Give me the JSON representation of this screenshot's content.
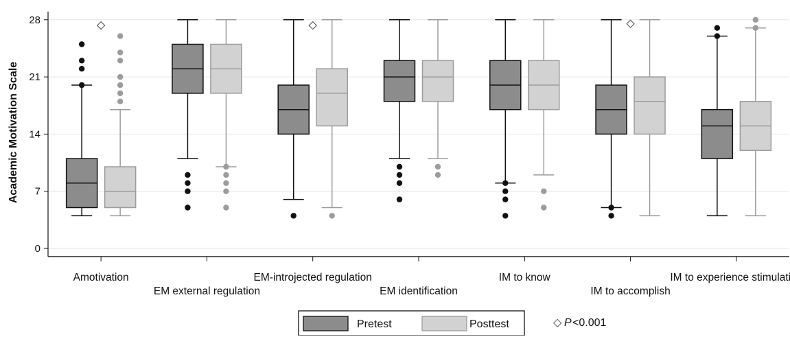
{
  "chart_data": {
    "type": "box",
    "ylabel": "Academic Motivation Scale",
    "ylim": [
      -1,
      29
    ],
    "yticks": [
      0,
      7,
      14,
      21,
      28
    ],
    "grid": true,
    "legend_position": "bottom",
    "categories": [
      "Amotivation",
      "EM external regulation",
      "EM-introjected regulation",
      "EM identification",
      "IM to know",
      "IM to accomplish",
      "IM to experience stimulation"
    ],
    "series": [
      {
        "name": "Pretest",
        "color": "#8c8c8c",
        "line_color": "#111111",
        "outlier_color": "#111111",
        "boxes": [
          {
            "q1": 5,
            "median": 8,
            "q3": 11,
            "whisker_low": 4,
            "whisker_high": 20,
            "outliers": [
              20,
              22,
              23,
              25
            ]
          },
          {
            "q1": 19,
            "median": 22,
            "q3": 25,
            "whisker_low": 11,
            "whisker_high": 28,
            "outliers": [
              5,
              7,
              8,
              9
            ]
          },
          {
            "q1": 14,
            "median": 17,
            "q3": 20,
            "whisker_low": 6,
            "whisker_high": 28,
            "outliers": [
              4
            ]
          },
          {
            "q1": 18,
            "median": 21,
            "q3": 23,
            "whisker_low": 11,
            "whisker_high": 28,
            "outliers": [
              6,
              8,
              9,
              10
            ]
          },
          {
            "q1": 17,
            "median": 20,
            "q3": 23,
            "whisker_low": 8,
            "whisker_high": 28,
            "outliers": [
              4,
              6,
              7,
              8
            ]
          },
          {
            "q1": 14,
            "median": 17,
            "q3": 20,
            "whisker_low": 5,
            "whisker_high": 28,
            "outliers": [
              4,
              5
            ]
          },
          {
            "q1": 11,
            "median": 15,
            "q3": 17,
            "whisker_low": 4,
            "whisker_high": 26,
            "outliers": [
              26,
              27
            ]
          }
        ]
      },
      {
        "name": "Posttest",
        "color": "#d2d2d2",
        "line_color": "#9c9c9c",
        "outlier_color": "#9c9c9c",
        "boxes": [
          {
            "q1": 5,
            "median": 7,
            "q3": 10,
            "whisker_low": 4,
            "whisker_high": 17,
            "outliers": [
              18,
              19,
              20,
              21,
              23,
              24,
              26
            ]
          },
          {
            "q1": 19,
            "median": 22,
            "q3": 25,
            "whisker_low": 10,
            "whisker_high": 28,
            "outliers": [
              5,
              7,
              8,
              9,
              10
            ]
          },
          {
            "q1": 15,
            "median": 19,
            "q3": 22,
            "whisker_low": 5,
            "whisker_high": 28,
            "outliers": [
              4
            ]
          },
          {
            "q1": 18,
            "median": 21,
            "q3": 23,
            "whisker_low": 11,
            "whisker_high": 28,
            "outliers": [
              9,
              10
            ]
          },
          {
            "q1": 17,
            "median": 20,
            "q3": 23,
            "whisker_low": 9,
            "whisker_high": 28,
            "outliers": [
              5,
              7
            ]
          },
          {
            "q1": 14,
            "median": 18,
            "q3": 21,
            "whisker_low": 4,
            "whisker_high": 28,
            "outliers": []
          },
          {
            "q1": 12,
            "median": 15,
            "q3": 18,
            "whisker_low": 4,
            "whisker_high": 27,
            "outliers": [
              27,
              28
            ]
          }
        ]
      }
    ],
    "significance_markers": [
      {
        "category": "Amotivation",
        "value": 27.3
      },
      {
        "category": "EM-introjected regulation",
        "value": 27.3
      },
      {
        "category": "IM to accomplish",
        "value": 27.5
      }
    ],
    "annotation": {
      "symbol": "◇",
      "italic_text": "P",
      "text": "<0.001"
    }
  }
}
